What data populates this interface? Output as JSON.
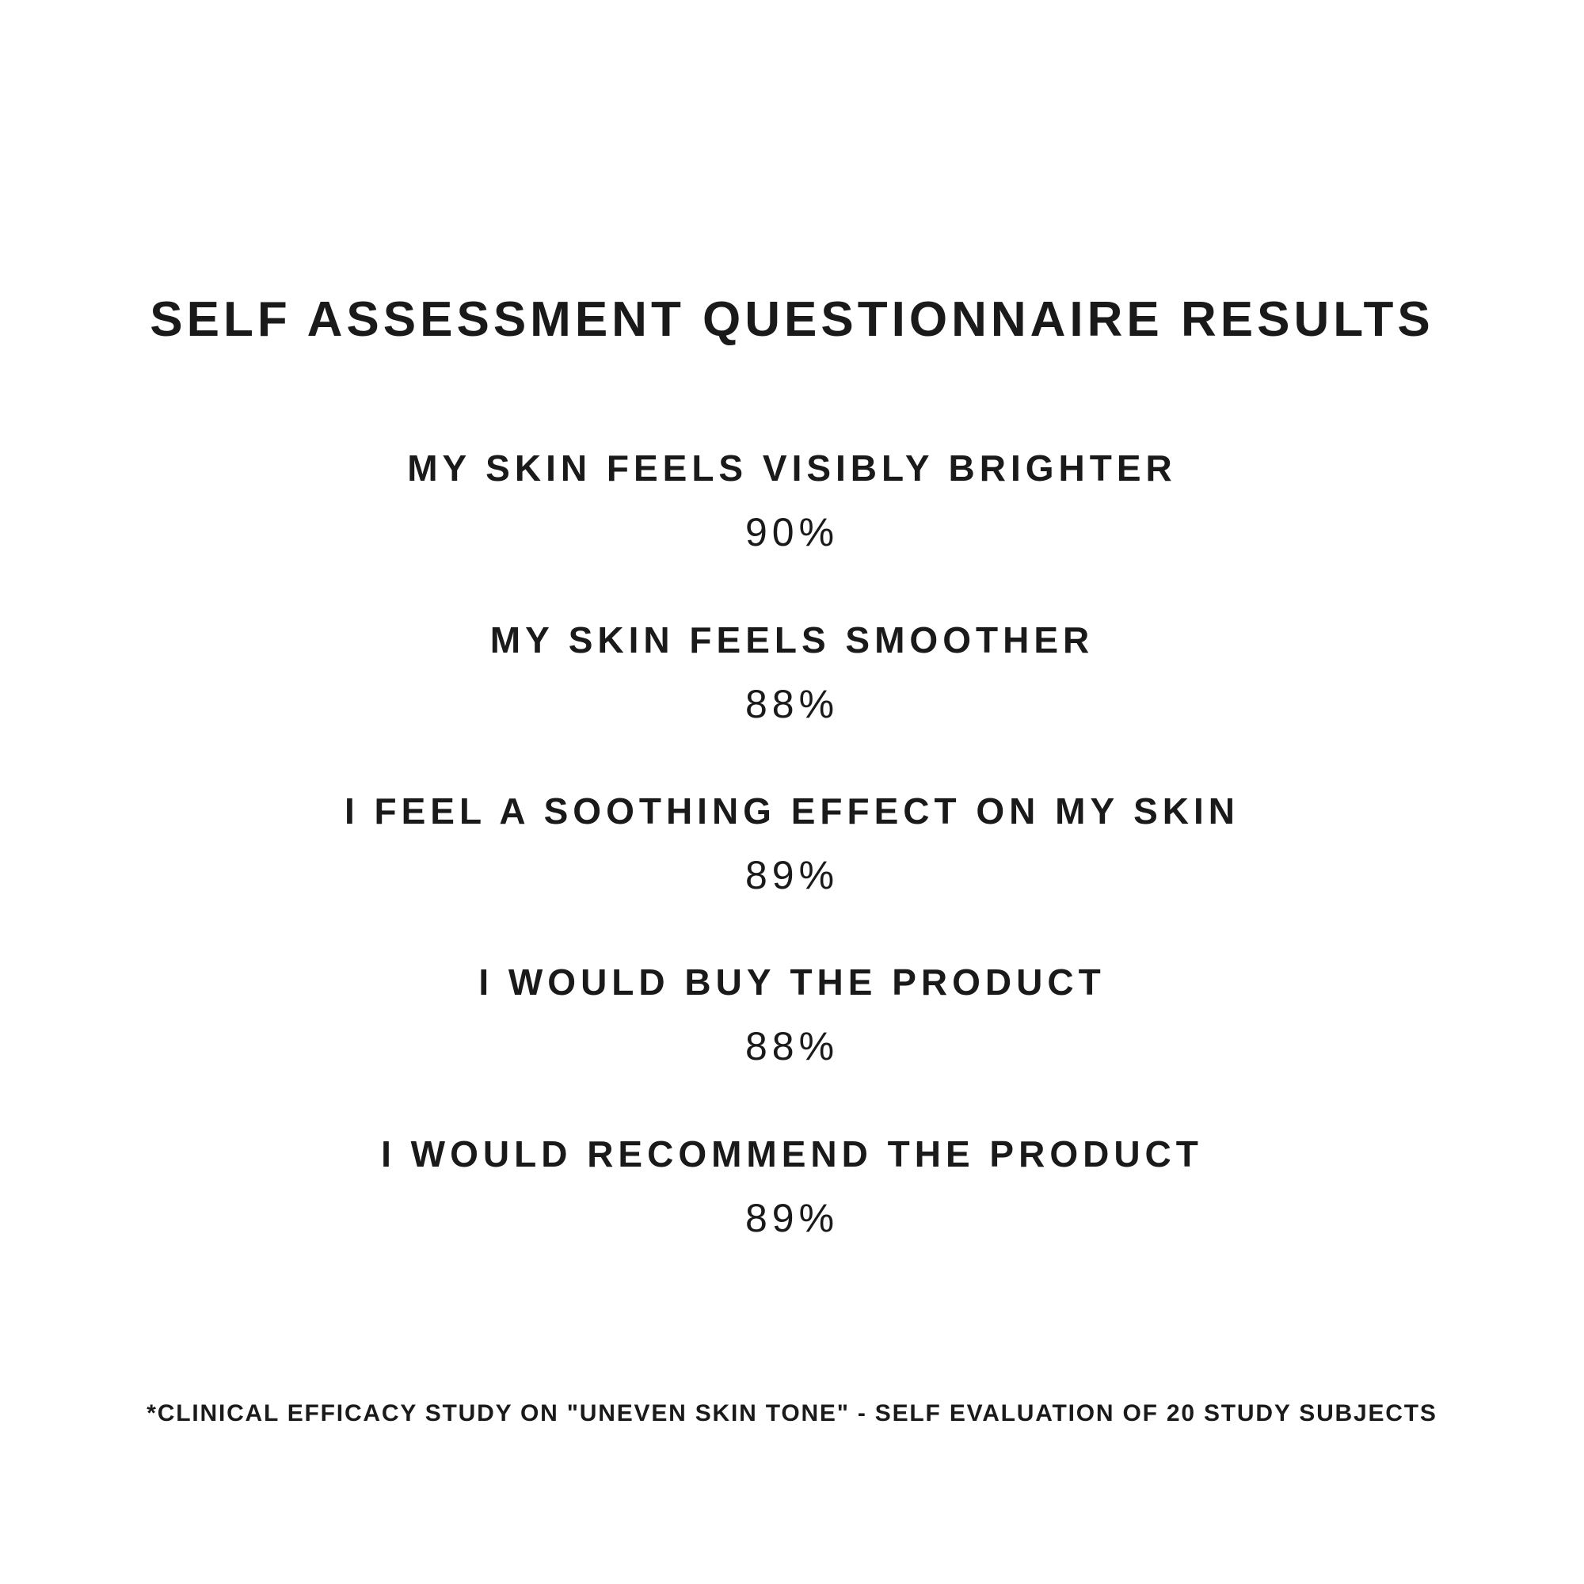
{
  "page": {
    "background_color": "#ffffff",
    "text_color": "#1a1a1a"
  },
  "title": "SELF ASSESSMENT QUESTIONNAIRE RESULTS",
  "results": [
    {
      "question": "MY SKIN FEELS VISIBLY BRIGHTER",
      "value": "90%"
    },
    {
      "question": "MY SKIN FEELS SMOOTHER",
      "value": "88%"
    },
    {
      "question": "I FEEL A SOOTHING EFFECT ON MY SKIN",
      "value": "89%"
    },
    {
      "question": "I WOULD BUY THE PRODUCT",
      "value": "88%"
    },
    {
      "question": "I WOULD RECOMMEND THE PRODUCT",
      "value": "89%"
    }
  ],
  "footnote": "*CLINICAL EFFICACY STUDY ON \"UNEVEN SKIN TONE\" - SELF EVALUATION OF 20 STUDY SUBJECTS"
}
